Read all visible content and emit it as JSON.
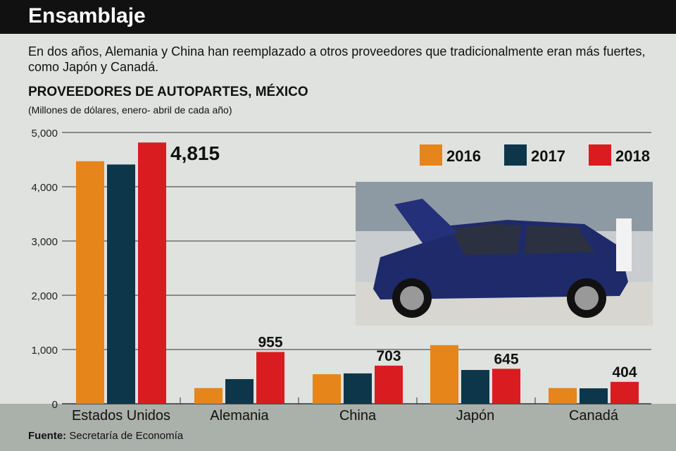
{
  "header": {
    "title": "Ensamblaje"
  },
  "intro": "En dos años, Alemania y China han reemplazado a otros proveedores que tradicionalmente eran más fuertes, como Japón y Canadá.",
  "source": {
    "label": "Fuente:",
    "text": "Secretaría de Economía"
  },
  "chart_data": {
    "type": "bar",
    "title": "PROVEEDORES DE AUTOPARTES, MÉXICO",
    "subtitle": "(Millones de dólares, enero- abril de cada año)",
    "categories": [
      "Estados Unidos",
      "Alemania",
      "China",
      "Japón",
      "Canadá"
    ],
    "series": [
      {
        "name": "2016",
        "color": "#e5851a",
        "values": [
          4470,
          290,
          545,
          1080,
          290
        ]
      },
      {
        "name": "2017",
        "color": "#0d364a",
        "values": [
          4410,
          455,
          560,
          623,
          285
        ]
      },
      {
        "name": "2018",
        "color": "#d91c20",
        "values": [
          4815,
          955,
          703,
          645,
          404
        ]
      }
    ],
    "data_labels": {
      "2018": [
        "4,815",
        "955",
        "703",
        "645",
        "404"
      ]
    },
    "yticks": [
      "0",
      "1,000",
      "2,000",
      "3,000",
      "4,000",
      "5,000"
    ],
    "ylim": [
      0,
      5000
    ],
    "grid": true,
    "legend": "top-right"
  }
}
